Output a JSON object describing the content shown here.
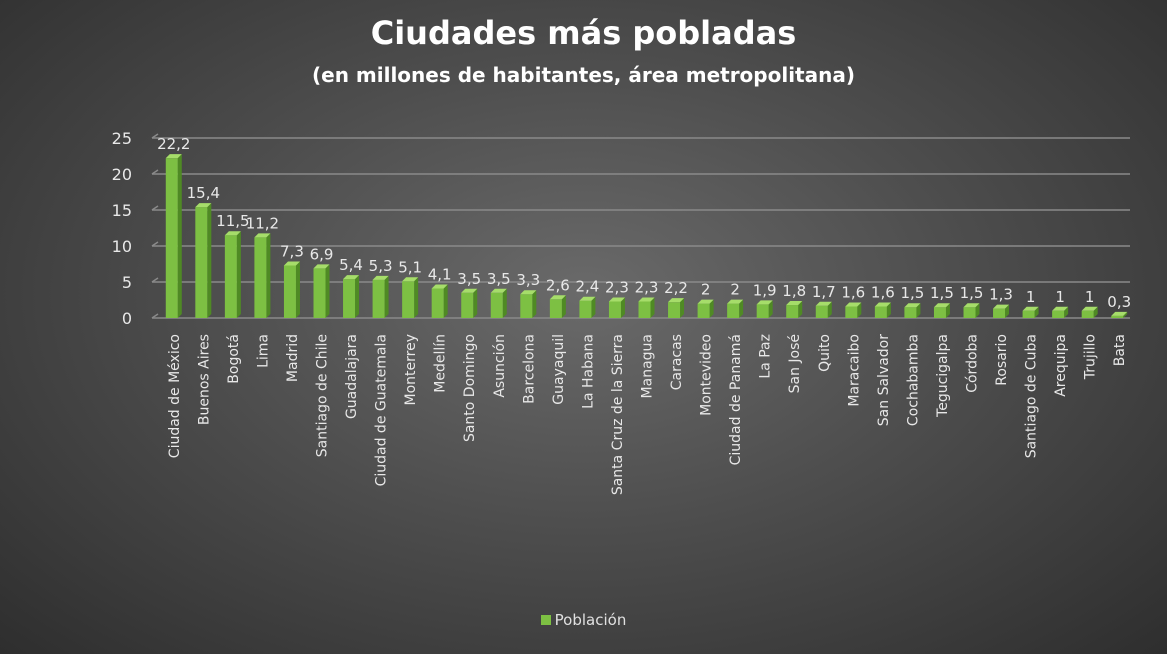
{
  "colors": {
    "bar_front": "#7dc043",
    "bar_side": "#4f8a24",
    "bar_top": "#a6dd6a",
    "grid": "#8a8a8a",
    "text": "#e8e8e8"
  },
  "chart_data": {
    "type": "bar",
    "title": "Ciudades más pobladas",
    "subtitle": "(en millones de habitantes, área metropolitana)",
    "ylim": [
      0,
      25
    ],
    "yticks": [
      "0",
      "5",
      "10",
      "15",
      "20",
      "25"
    ],
    "grid": true,
    "legend_position": "bottom",
    "categories": [
      "Ciudad de México",
      "Buenos Aires",
      "Bogotá",
      "Lima",
      "Madrid",
      "Santiago de Chile",
      "Guadalajara",
      "Ciudad de Guatemala",
      "Monterrey",
      "Medellín",
      "Santo Domingo",
      "Asunción",
      "Barcelona",
      "Guayaquil",
      "La Habana",
      "Santa Cruz de la Sierra",
      "Managua",
      "Caracas",
      "Montevideo",
      "Ciudad de Panamá",
      "La Paz",
      "San José",
      "Quito",
      "Maracaibo",
      "San Salvador",
      "Cochabamba",
      "Tegucigalpa",
      "Córdoba",
      "Rosario",
      "Santiago de Cuba",
      "Arequipa",
      "Trujillo",
      "Bata"
    ],
    "series": [
      {
        "name": "Población",
        "values": [
          22.2,
          15.4,
          11.5,
          11.2,
          7.3,
          6.9,
          5.4,
          5.3,
          5.1,
          4.1,
          3.5,
          3.5,
          3.3,
          2.6,
          2.4,
          2.3,
          2.3,
          2.2,
          2,
          2,
          1.9,
          1.8,
          1.7,
          1.6,
          1.6,
          1.5,
          1.5,
          1.5,
          1.3,
          1,
          1,
          1,
          0.3
        ],
        "labels": [
          "22,2",
          "15,4",
          "11,5",
          "11,2",
          "7,3",
          "6,9",
          "5,4",
          "5,3",
          "5,1",
          "4,1",
          "3,5",
          "3,5",
          "3,3",
          "2,6",
          "2,4",
          "2,3",
          "2,3",
          "2,2",
          "2",
          "2",
          "1,9",
          "1,8",
          "1,7",
          "1,6",
          "1,6",
          "1,5",
          "1,5",
          "1,5",
          "1,3",
          "1",
          "1",
          "1",
          "0,3"
        ]
      }
    ]
  }
}
